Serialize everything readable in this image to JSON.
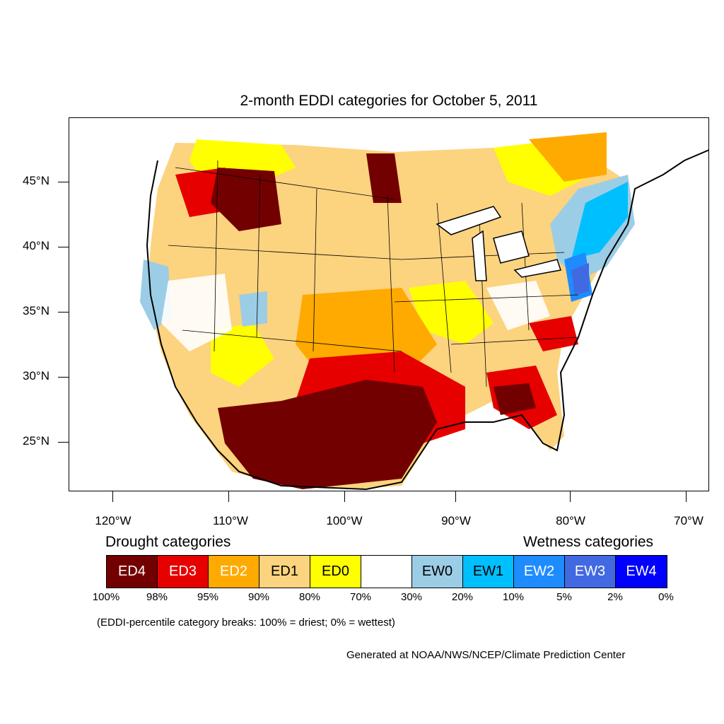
{
  "title": "2-month EDDI categories for October 5, 2011",
  "lat_labels": [
    "45°N",
    "40°N",
    "35°N",
    "30°N",
    "25°N"
  ],
  "lon_labels": [
    "120°W",
    "110°W",
    "100°W",
    "90°W",
    "80°W",
    "70°W"
  ],
  "legend": {
    "drought_heading": "Drought categories",
    "wetness_heading": "Wetness categories",
    "categories": [
      {
        "label": "ED4",
        "color": "#730000",
        "text_color": "#ffffff"
      },
      {
        "label": "ED3",
        "color": "#e60000",
        "text_color": "#ffffff"
      },
      {
        "label": "ED2",
        "color": "#ffaa00",
        "text_color": "#ffffff"
      },
      {
        "label": "ED1",
        "color": "#fcd37f",
        "text_color": "#000000"
      },
      {
        "label": "ED0",
        "color": "#ffff00",
        "text_color": "#000000"
      },
      {
        "label": "",
        "color": "#ffffff",
        "text_color": "#000000"
      },
      {
        "label": "EW0",
        "color": "#9ccde6",
        "text_color": "#000000"
      },
      {
        "label": "EW1",
        "color": "#00bfff",
        "text_color": "#000000"
      },
      {
        "label": "EW2",
        "color": "#1e8cff",
        "text_color": "#ffffff"
      },
      {
        "label": "EW3",
        "color": "#4169e1",
        "text_color": "#ffffff"
      },
      {
        "label": "EW4",
        "color": "#0000ff",
        "text_color": "#ffffff"
      }
    ],
    "breaks": [
      "100%",
      "98%",
      "95%",
      "90%",
      "80%",
      "70%",
      "30%",
      "20%",
      "10%",
      "5%",
      "2%",
      "0%"
    ]
  },
  "note": "(EDDI-percentile category breaks: 100% = driest; 0% = wettest)",
  "credit": "Generated at NOAA/NWS/NCEP/Climate Prediction Center"
}
